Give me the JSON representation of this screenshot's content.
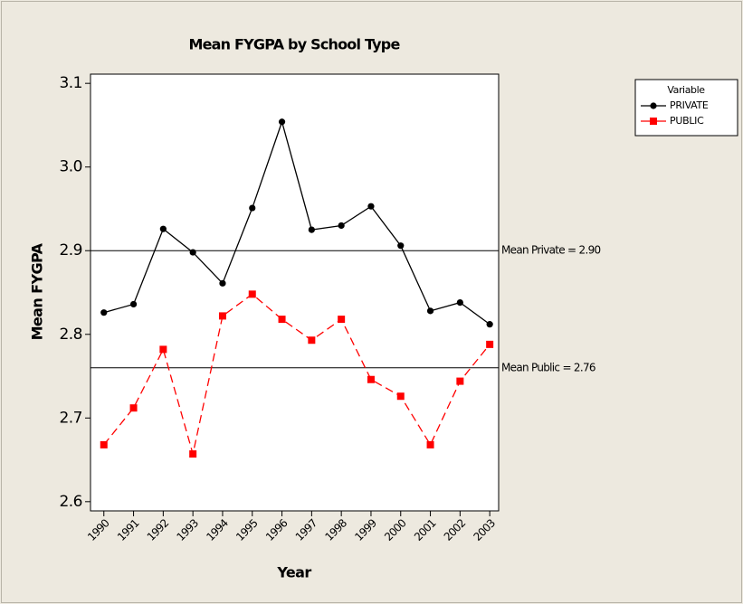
{
  "chart_data": {
    "type": "line",
    "title": "Mean FYGPA by School Type",
    "x_label": "Year",
    "y_label": "Mean FYGPA",
    "x": [
      1990,
      1991,
      1992,
      1993,
      1994,
      1995,
      1996,
      1997,
      1998,
      1999,
      2000,
      2001,
      2002,
      2003
    ],
    "series": [
      {
        "name": "PRIVATE",
        "color": "#000000",
        "marker": "circle",
        "linestyle": "solid",
        "values": [
          2.826,
          2.836,
          2.926,
          2.898,
          2.861,
          2.951,
          3.054,
          2.925,
          2.93,
          2.953,
          2.906,
          2.828,
          2.838,
          2.812
        ]
      },
      {
        "name": "PUBLIC",
        "color": "#ff0000",
        "marker": "square",
        "linestyle": "dashed",
        "values": [
          2.668,
          2.712,
          2.782,
          2.657,
          2.822,
          2.848,
          2.818,
          2.793,
          2.818,
          2.746,
          2.726,
          2.668,
          2.744,
          2.788
        ]
      }
    ],
    "reference_lines": [
      {
        "value": 2.9,
        "label": "Mean Private = 2.90"
      },
      {
        "value": 2.76,
        "label": "Mean Public = 2.76"
      }
    ],
    "legend_title": "Variable",
    "legend_position": "outside-upper-right",
    "xlim": [
      1989.55,
      2003.3
    ],
    "xticks": [
      1990,
      1991,
      1992,
      1993,
      1994,
      1995,
      1996,
      1997,
      1998,
      1999,
      2000,
      2001,
      2002,
      2003
    ],
    "ylim": [
      2.589,
      3.111
    ],
    "yticks": [
      {
        "value": 2.6,
        "label": "2.6"
      },
      {
        "value": 2.7,
        "label": "2.7"
      },
      {
        "value": 2.8,
        "label": "2.8"
      },
      {
        "value": 2.9,
        "label": "2.9"
      },
      {
        "value": 3,
        "label": "3.0"
      },
      {
        "value": 3.1,
        "label": "3.1"
      }
    ]
  }
}
